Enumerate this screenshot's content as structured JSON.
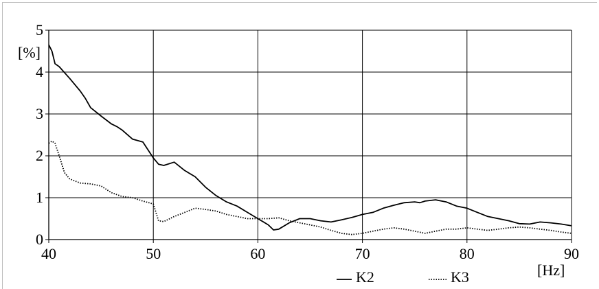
{
  "chart_data": {
    "type": "line",
    "xlabel": "[Hz]",
    "ylabel": "[%]",
    "xlim": [
      40,
      90
    ],
    "ylim": [
      0,
      5
    ],
    "x_ticks": [
      40,
      50,
      60,
      70,
      80,
      90
    ],
    "y_ticks": [
      0,
      1,
      2,
      3,
      4,
      5
    ],
    "grid": true,
    "legend_position": "bottom-center",
    "series": [
      {
        "name": "K2",
        "style": "solid",
        "x": [
          40,
          40.3,
          40.6,
          41,
          42,
          43,
          43.5,
          44,
          45,
          46,
          46.5,
          47,
          48,
          49,
          50,
          50.5,
          51,
          52,
          53,
          54,
          55,
          56,
          57,
          58,
          59,
          60,
          61,
          61.5,
          62,
          63,
          64,
          65,
          66,
          67,
          68,
          69,
          70,
          71,
          72,
          73,
          74,
          75,
          75.5,
          76,
          77,
          78,
          79,
          80,
          81,
          82,
          83,
          84,
          85,
          86,
          87,
          88,
          89,
          90
        ],
        "y": [
          4.65,
          4.5,
          4.2,
          4.13,
          3.85,
          3.55,
          3.37,
          3.15,
          2.95,
          2.76,
          2.7,
          2.62,
          2.4,
          2.33,
          1.95,
          1.8,
          1.77,
          1.85,
          1.65,
          1.5,
          1.25,
          1.05,
          0.9,
          0.8,
          0.65,
          0.5,
          0.35,
          0.23,
          0.25,
          0.4,
          0.5,
          0.5,
          0.45,
          0.42,
          0.47,
          0.53,
          0.6,
          0.65,
          0.75,
          0.82,
          0.88,
          0.9,
          0.88,
          0.92,
          0.95,
          0.9,
          0.8,
          0.75,
          0.65,
          0.55,
          0.5,
          0.45,
          0.38,
          0.37,
          0.42,
          0.4,
          0.37,
          0.33
        ]
      },
      {
        "name": "K3",
        "style": "dotted",
        "x": [
          40,
          40.3,
          40.6,
          41,
          41.5,
          42,
          43,
          44,
          45,
          46,
          47,
          48,
          49,
          50,
          50.5,
          51,
          52,
          53,
          54,
          55,
          56,
          57,
          58,
          59,
          60,
          61,
          62,
          63,
          64,
          65,
          66,
          67,
          68,
          69,
          70,
          71,
          72,
          73,
          74,
          75,
          76,
          77,
          78,
          79,
          80,
          81,
          82,
          83,
          84,
          85,
          86,
          87,
          88,
          89,
          90
        ],
        "y": [
          2.3,
          2.35,
          2.3,
          2.0,
          1.6,
          1.45,
          1.35,
          1.33,
          1.28,
          1.12,
          1.03,
          1.0,
          0.92,
          0.85,
          0.45,
          0.43,
          0.55,
          0.65,
          0.75,
          0.72,
          0.68,
          0.6,
          0.55,
          0.5,
          0.5,
          0.5,
          0.52,
          0.45,
          0.4,
          0.35,
          0.3,
          0.22,
          0.15,
          0.12,
          0.15,
          0.2,
          0.25,
          0.28,
          0.25,
          0.2,
          0.15,
          0.2,
          0.25,
          0.25,
          0.28,
          0.25,
          0.22,
          0.25,
          0.28,
          0.3,
          0.28,
          0.25,
          0.22,
          0.18,
          0.15
        ]
      }
    ]
  }
}
